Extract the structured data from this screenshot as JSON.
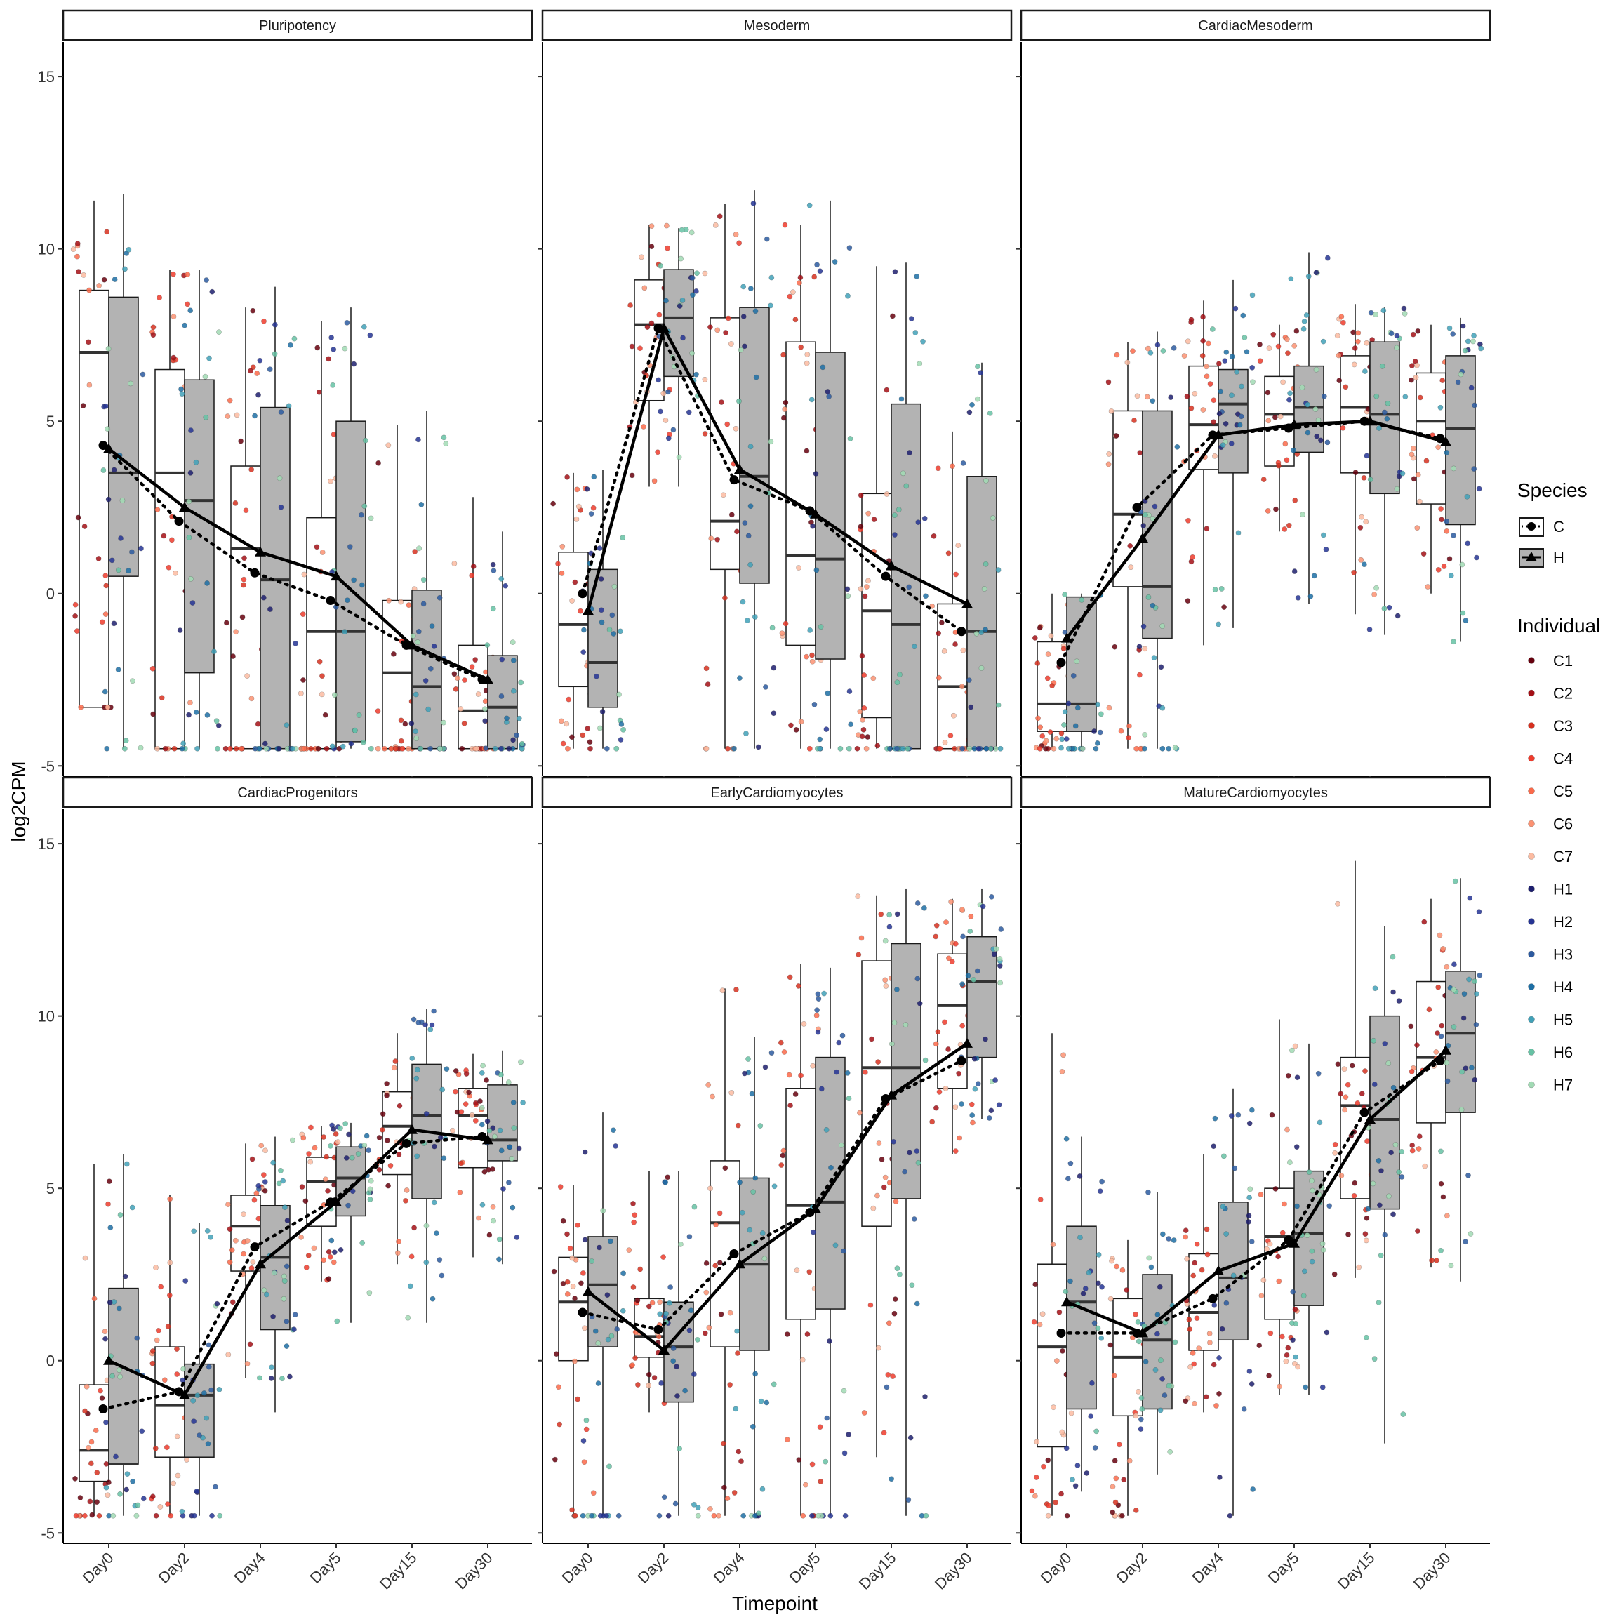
{
  "chart_data": {
    "type": "boxplot",
    "xlabel": "Timepoint",
    "ylabel": "log2CPM",
    "ylim": [
      -5.3,
      16.0
    ],
    "yticks": [
      -5,
      0,
      5,
      10,
      15
    ],
    "categories": [
      "Day0",
      "Day2",
      "Day4",
      "Day5",
      "Day15",
      "Day30"
    ],
    "species": [
      {
        "name": "C",
        "fill": "#ffffff",
        "marker": "circle",
        "line": "dotted"
      },
      {
        "name": "H",
        "fill": "#b3b3b3",
        "marker": "triangle",
        "line": "solid"
      }
    ],
    "individuals": [
      {
        "name": "C1",
        "color": "#67000d"
      },
      {
        "name": "C2",
        "color": "#a50f15"
      },
      {
        "name": "C3",
        "color": "#d7301f"
      },
      {
        "name": "C4",
        "color": "#ef3b2c"
      },
      {
        "name": "C5",
        "color": "#fb6a4a"
      },
      {
        "name": "C6",
        "color": "#fc9272"
      },
      {
        "name": "C7",
        "color": "#fcbba1"
      },
      {
        "name": "H1",
        "color": "#1d1f6f"
      },
      {
        "name": "H2",
        "color": "#253494"
      },
      {
        "name": "H3",
        "color": "#2c5aa0"
      },
      {
        "name": "H4",
        "color": "#1d6fa5"
      },
      {
        "name": "H5",
        "color": "#41a1b8"
      },
      {
        "name": "H6",
        "color": "#66c2a4"
      },
      {
        "name": "H7",
        "color": "#a1dab4"
      }
    ],
    "legend": {
      "species_title": "Species",
      "individual_title": "Individual",
      "position": "right"
    },
    "panels": [
      {
        "title": "Pluripotency",
        "C": {
          "box": [
            [
              -3.3,
              -3.3,
              7.0,
              8.8,
              11.4
            ],
            [
              -4.5,
              -4.5,
              3.5,
              6.5,
              9.4
            ],
            [
              -4.5,
              -4.5,
              1.3,
              3.7,
              8.3
            ],
            [
              -4.5,
              -4.5,
              -1.1,
              2.2,
              7.9
            ],
            [
              -4.5,
              -4.5,
              -2.3,
              -0.2,
              4.9
            ],
            [
              -4.5,
              -4.5,
              -3.4,
              -1.5,
              2.8
            ]
          ],
          "mean": [
            4.3,
            2.1,
            0.6,
            -0.2,
            -1.5,
            -2.5
          ]
        },
        "H": {
          "box": [
            [
              -4.5,
              0.5,
              3.5,
              8.6,
              11.6
            ],
            [
              -4.5,
              -2.3,
              2.7,
              6.2,
              9.4
            ],
            [
              -4.5,
              -4.5,
              0.4,
              5.4,
              8.9
            ],
            [
              -4.5,
              -4.3,
              -1.1,
              5.0,
              8.3
            ],
            [
              -4.5,
              -4.5,
              -2.7,
              0.1,
              5.3
            ],
            [
              -4.5,
              -4.5,
              -3.3,
              -1.8,
              1.8
            ]
          ],
          "mean": [
            4.2,
            2.5,
            1.2,
            0.5,
            -1.5,
            -2.5
          ]
        }
      },
      {
        "title": "Mesoderm",
        "C": {
          "box": [
            [
              -4.5,
              -2.7,
              -0.9,
              1.2,
              3.5
            ],
            [
              3.1,
              5.6,
              7.8,
              9.1,
              10.7
            ],
            [
              -4.5,
              0.7,
              2.1,
              8.0,
              11.3
            ],
            [
              -4.5,
              -1.5,
              1.1,
              7.3,
              10.7
            ],
            [
              -4.5,
              -3.6,
              -0.5,
              2.9,
              9.5
            ],
            [
              -4.5,
              -4.5,
              -2.7,
              -0.3,
              4.7
            ]
          ],
          "mean": [
            0.0,
            7.7,
            3.3,
            2.4,
            0.5,
            -1.1
          ]
        },
        "H": {
          "box": [
            [
              -4.5,
              -3.3,
              -2.0,
              0.7,
              3.6
            ],
            [
              3.1,
              6.3,
              8.0,
              9.4,
              10.6
            ],
            [
              -4.5,
              0.3,
              3.4,
              8.3,
              11.7
            ],
            [
              -4.5,
              -1.9,
              1.0,
              7.0,
              11.4
            ],
            [
              -4.5,
              -4.5,
              -0.9,
              5.5,
              9.6
            ],
            [
              -4.5,
              -4.5,
              -1.1,
              3.4,
              6.7
            ]
          ],
          "mean": [
            -0.5,
            7.7,
            3.6,
            2.3,
            0.8,
            -0.3
          ]
        }
      },
      {
        "title": "CardiacMesoderm",
        "C": {
          "box": [
            [
              -4.5,
              -4.0,
              -3.2,
              -1.4,
              0.0
            ],
            [
              -4.5,
              0.2,
              2.3,
              5.3,
              7.3
            ],
            [
              -1.5,
              3.6,
              4.9,
              6.6,
              8.5
            ],
            [
              1.8,
              3.7,
              5.2,
              6.3,
              7.8
            ],
            [
              -0.6,
              3.5,
              5.4,
              6.9,
              8.4
            ],
            [
              0.0,
              2.6,
              5.0,
              6.4,
              7.8
            ]
          ],
          "mean": [
            -2.0,
            2.5,
            4.6,
            4.8,
            5.0,
            4.5
          ]
        },
        "H": {
          "box": [
            [
              -4.5,
              -4.0,
              -3.2,
              -0.1,
              0.0
            ],
            [
              -4.5,
              -1.3,
              0.2,
              5.3,
              7.6
            ],
            [
              -1.0,
              3.5,
              5.5,
              6.5,
              9.1
            ],
            [
              -0.3,
              4.1,
              5.4,
              6.6,
              9.9
            ],
            [
              -1.2,
              2.9,
              5.2,
              7.3,
              8.3
            ],
            [
              -1.4,
              2.0,
              4.8,
              6.9,
              8.0
            ]
          ],
          "mean": [
            -1.3,
            1.6,
            4.6,
            4.9,
            5.0,
            4.4
          ]
        }
      },
      {
        "title": "CardiacProgenitors",
        "C": {
          "box": [
            [
              -4.5,
              -3.5,
              -2.6,
              -0.7,
              5.7
            ],
            [
              -4.5,
              -2.8,
              -1.3,
              0.4,
              4.8
            ],
            [
              -0.5,
              2.6,
              3.9,
              4.8,
              6.3
            ],
            [
              2.3,
              3.9,
              5.2,
              5.9,
              6.8
            ],
            [
              2.8,
              5.4,
              6.8,
              7.8,
              9.5
            ],
            [
              3.0,
              5.6,
              7.1,
              7.9,
              8.9
            ]
          ],
          "mean": [
            -1.4,
            -0.9,
            3.3,
            4.6,
            6.3,
            6.5
          ]
        },
        "H": {
          "box": [
            [
              -4.5,
              -3.0,
              -3.0,
              2.1,
              6.0
            ],
            [
              -4.5,
              -2.8,
              -1.0,
              -0.1,
              4.0
            ],
            [
              -1.5,
              0.9,
              3.0,
              4.5,
              6.5
            ],
            [
              1.1,
              4.2,
              5.3,
              6.2,
              6.9
            ],
            [
              1.1,
              4.7,
              7.1,
              8.6,
              10.2
            ],
            [
              2.8,
              5.8,
              6.4,
              8.0,
              9.0
            ]
          ],
          "mean": [
            0.0,
            -1.0,
            2.8,
            4.6,
            6.7,
            6.4
          ]
        }
      },
      {
        "title": "EarlyCardiomyocytes",
        "C": {
          "box": [
            [
              -4.5,
              0.0,
              1.7,
              3.0,
              5.1
            ],
            [
              -1.5,
              0.1,
              0.7,
              1.8,
              5.5
            ],
            [
              -4.5,
              0.4,
              4.0,
              5.8,
              10.8
            ],
            [
              -4.5,
              1.2,
              4.5,
              7.9,
              11.5
            ],
            [
              -2.8,
              3.9,
              8.5,
              11.6,
              13.5
            ],
            [
              6.0,
              7.9,
              10.3,
              11.8,
              13.4
            ]
          ],
          "mean": [
            1.4,
            0.9,
            3.1,
            4.3,
            7.6,
            8.7
          ]
        },
        "H": {
          "box": [
            [
              -4.5,
              0.4,
              2.2,
              3.6,
              7.2
            ],
            [
              -4.5,
              -1.2,
              0.4,
              1.7,
              5.5
            ],
            [
              -4.5,
              0.3,
              2.8,
              5.3,
              9.4
            ],
            [
              -4.5,
              1.5,
              4.6,
              8.8,
              11.4
            ],
            [
              -4.5,
              4.7,
              8.5,
              12.1,
              13.7
            ],
            [
              7.0,
              8.8,
              11.0,
              12.3,
              13.7
            ]
          ],
          "mean": [
            2.0,
            0.3,
            2.8,
            4.4,
            7.7,
            9.2
          ]
        }
      },
      {
        "title": "MatureCardiomyocytes",
        "C": {
          "box": [
            [
              -4.5,
              -2.5,
              0.4,
              2.8,
              9.5
            ],
            [
              -4.5,
              -1.6,
              0.1,
              1.8,
              3.5
            ],
            [
              -1.5,
              0.3,
              1.4,
              3.1,
              6.0
            ],
            [
              -1.0,
              1.2,
              3.6,
              5.0,
              9.9
            ],
            [
              2.4,
              4.7,
              7.4,
              8.8,
              14.5
            ],
            [
              2.7,
              6.9,
              8.8,
              11.0,
              13.4
            ]
          ],
          "mean": [
            0.8,
            0.8,
            1.8,
            3.5,
            7.2,
            8.7
          ]
        },
        "H": {
          "box": [
            [
              -3.8,
              -1.4,
              1.7,
              3.9,
              6.5
            ],
            [
              -3.3,
              -1.4,
              0.6,
              2.5,
              4.9
            ],
            [
              -4.5,
              0.6,
              2.4,
              4.6,
              7.9
            ],
            [
              -1.0,
              1.6,
              3.7,
              5.5,
              9.2
            ],
            [
              -2.4,
              4.4,
              7.0,
              10.0,
              12.6
            ],
            [
              2.3,
              7.2,
              9.5,
              11.3,
              14.0
            ]
          ],
          "mean": [
            1.7,
            0.8,
            2.6,
            3.4,
            7.0,
            9.0
          ]
        }
      }
    ]
  }
}
